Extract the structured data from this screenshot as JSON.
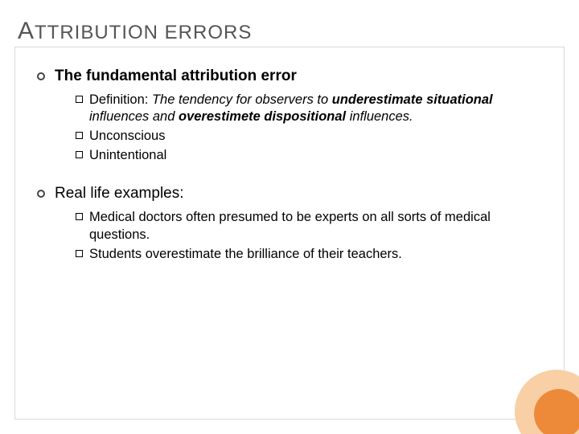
{
  "colors": {
    "background": "#ffffff",
    "border": "#d9d9d9",
    "title_text": "#555555",
    "body_text": "#000000",
    "ring_bullet": "#444444",
    "deco_outer": "#f9cfa6",
    "deco_inner": "#ed8a39"
  },
  "typography": {
    "title_fontsize": 24,
    "title_first_letter_fontsize": 30,
    "level1_fontsize": 19,
    "level2_fontsize": 16.5,
    "font_family": "Arial"
  },
  "title": {
    "first_letter": "A",
    "rest": "TTRIBUTION ERRORS"
  },
  "sections": [
    {
      "heading": "The fundamental attribution error",
      "heading_bold": true,
      "items": [
        {
          "runs": [
            {
              "text": "Definition: ",
              "style": "plain"
            },
            {
              "text": "The tendency for observers to ",
              "style": "italic"
            },
            {
              "text": "underestimate situational",
              "style": "boldital"
            },
            {
              "text": " influences and ",
              "style": "italic"
            },
            {
              "text": "overestimete dispositional",
              "style": "boldital"
            },
            {
              "text": " influences.",
              "style": "italic"
            }
          ]
        },
        {
          "runs": [
            {
              "text": "Unconscious",
              "style": "plain"
            }
          ]
        },
        {
          "runs": [
            {
              "text": "Unintentional",
              "style": "plain"
            }
          ]
        }
      ]
    },
    {
      "heading": "Real life examples:",
      "heading_bold": false,
      "items": [
        {
          "runs": [
            {
              "text": "Medical doctors often presumed to be experts on all sorts of medical questions.",
              "style": "plain"
            }
          ]
        },
        {
          "runs": [
            {
              "text": "Students overestimate the brilliance of their teachers.",
              "style": "plain"
            }
          ]
        }
      ]
    }
  ]
}
